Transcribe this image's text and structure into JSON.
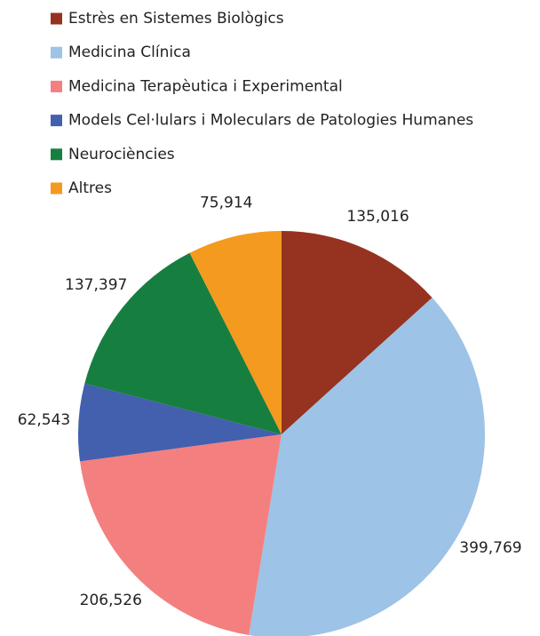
{
  "chart_data": {
    "type": "pie",
    "categories": [
      "Estrès en Sistemes Biològics",
      "Medicina Clínica",
      "Medicina Terapèutica i Experimental",
      "Models Cel·lulars i Moleculars de Patologies Humanes",
      "Neurociències",
      "Altres"
    ],
    "values": [
      135016,
      399769,
      206526,
      62543,
      137397,
      75914
    ],
    "value_labels": [
      "135,016",
      "399,769",
      "206,526",
      "62,543",
      "137,397",
      "75,914"
    ],
    "colors": [
      "#953320",
      "#9dc3e6",
      "#f47f7f",
      "#4260ad",
      "#167f3f",
      "#f49a1e"
    ],
    "legend": "top-left"
  }
}
